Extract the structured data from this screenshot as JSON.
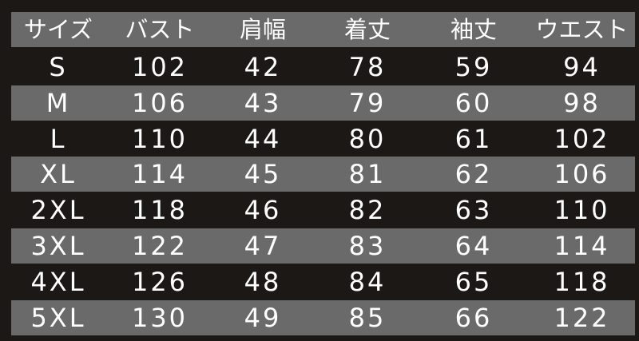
{
  "table": {
    "headers": [
      "サイズ",
      "バスト",
      "肩幅",
      "着丈",
      "袖丈",
      "ウエスト"
    ],
    "rows": [
      [
        "S",
        "102",
        "42",
        "78",
        "59",
        "94"
      ],
      [
        "M",
        "106",
        "43",
        "79",
        "60",
        "98"
      ],
      [
        "L",
        "110",
        "44",
        "80",
        "61",
        "102"
      ],
      [
        "XL",
        "114",
        "45",
        "81",
        "62",
        "106"
      ],
      [
        "2XL",
        "118",
        "46",
        "82",
        "63",
        "110"
      ],
      [
        "3XL",
        "122",
        "47",
        "83",
        "64",
        "114"
      ],
      [
        "4XL",
        "126",
        "48",
        "84",
        "65",
        "118"
      ],
      [
        "5XL",
        "130",
        "49",
        "85",
        "66",
        "122"
      ]
    ]
  },
  "colors": {
    "background": "#1b1815",
    "band": "#6a6a6a",
    "text": "#ffffff"
  }
}
